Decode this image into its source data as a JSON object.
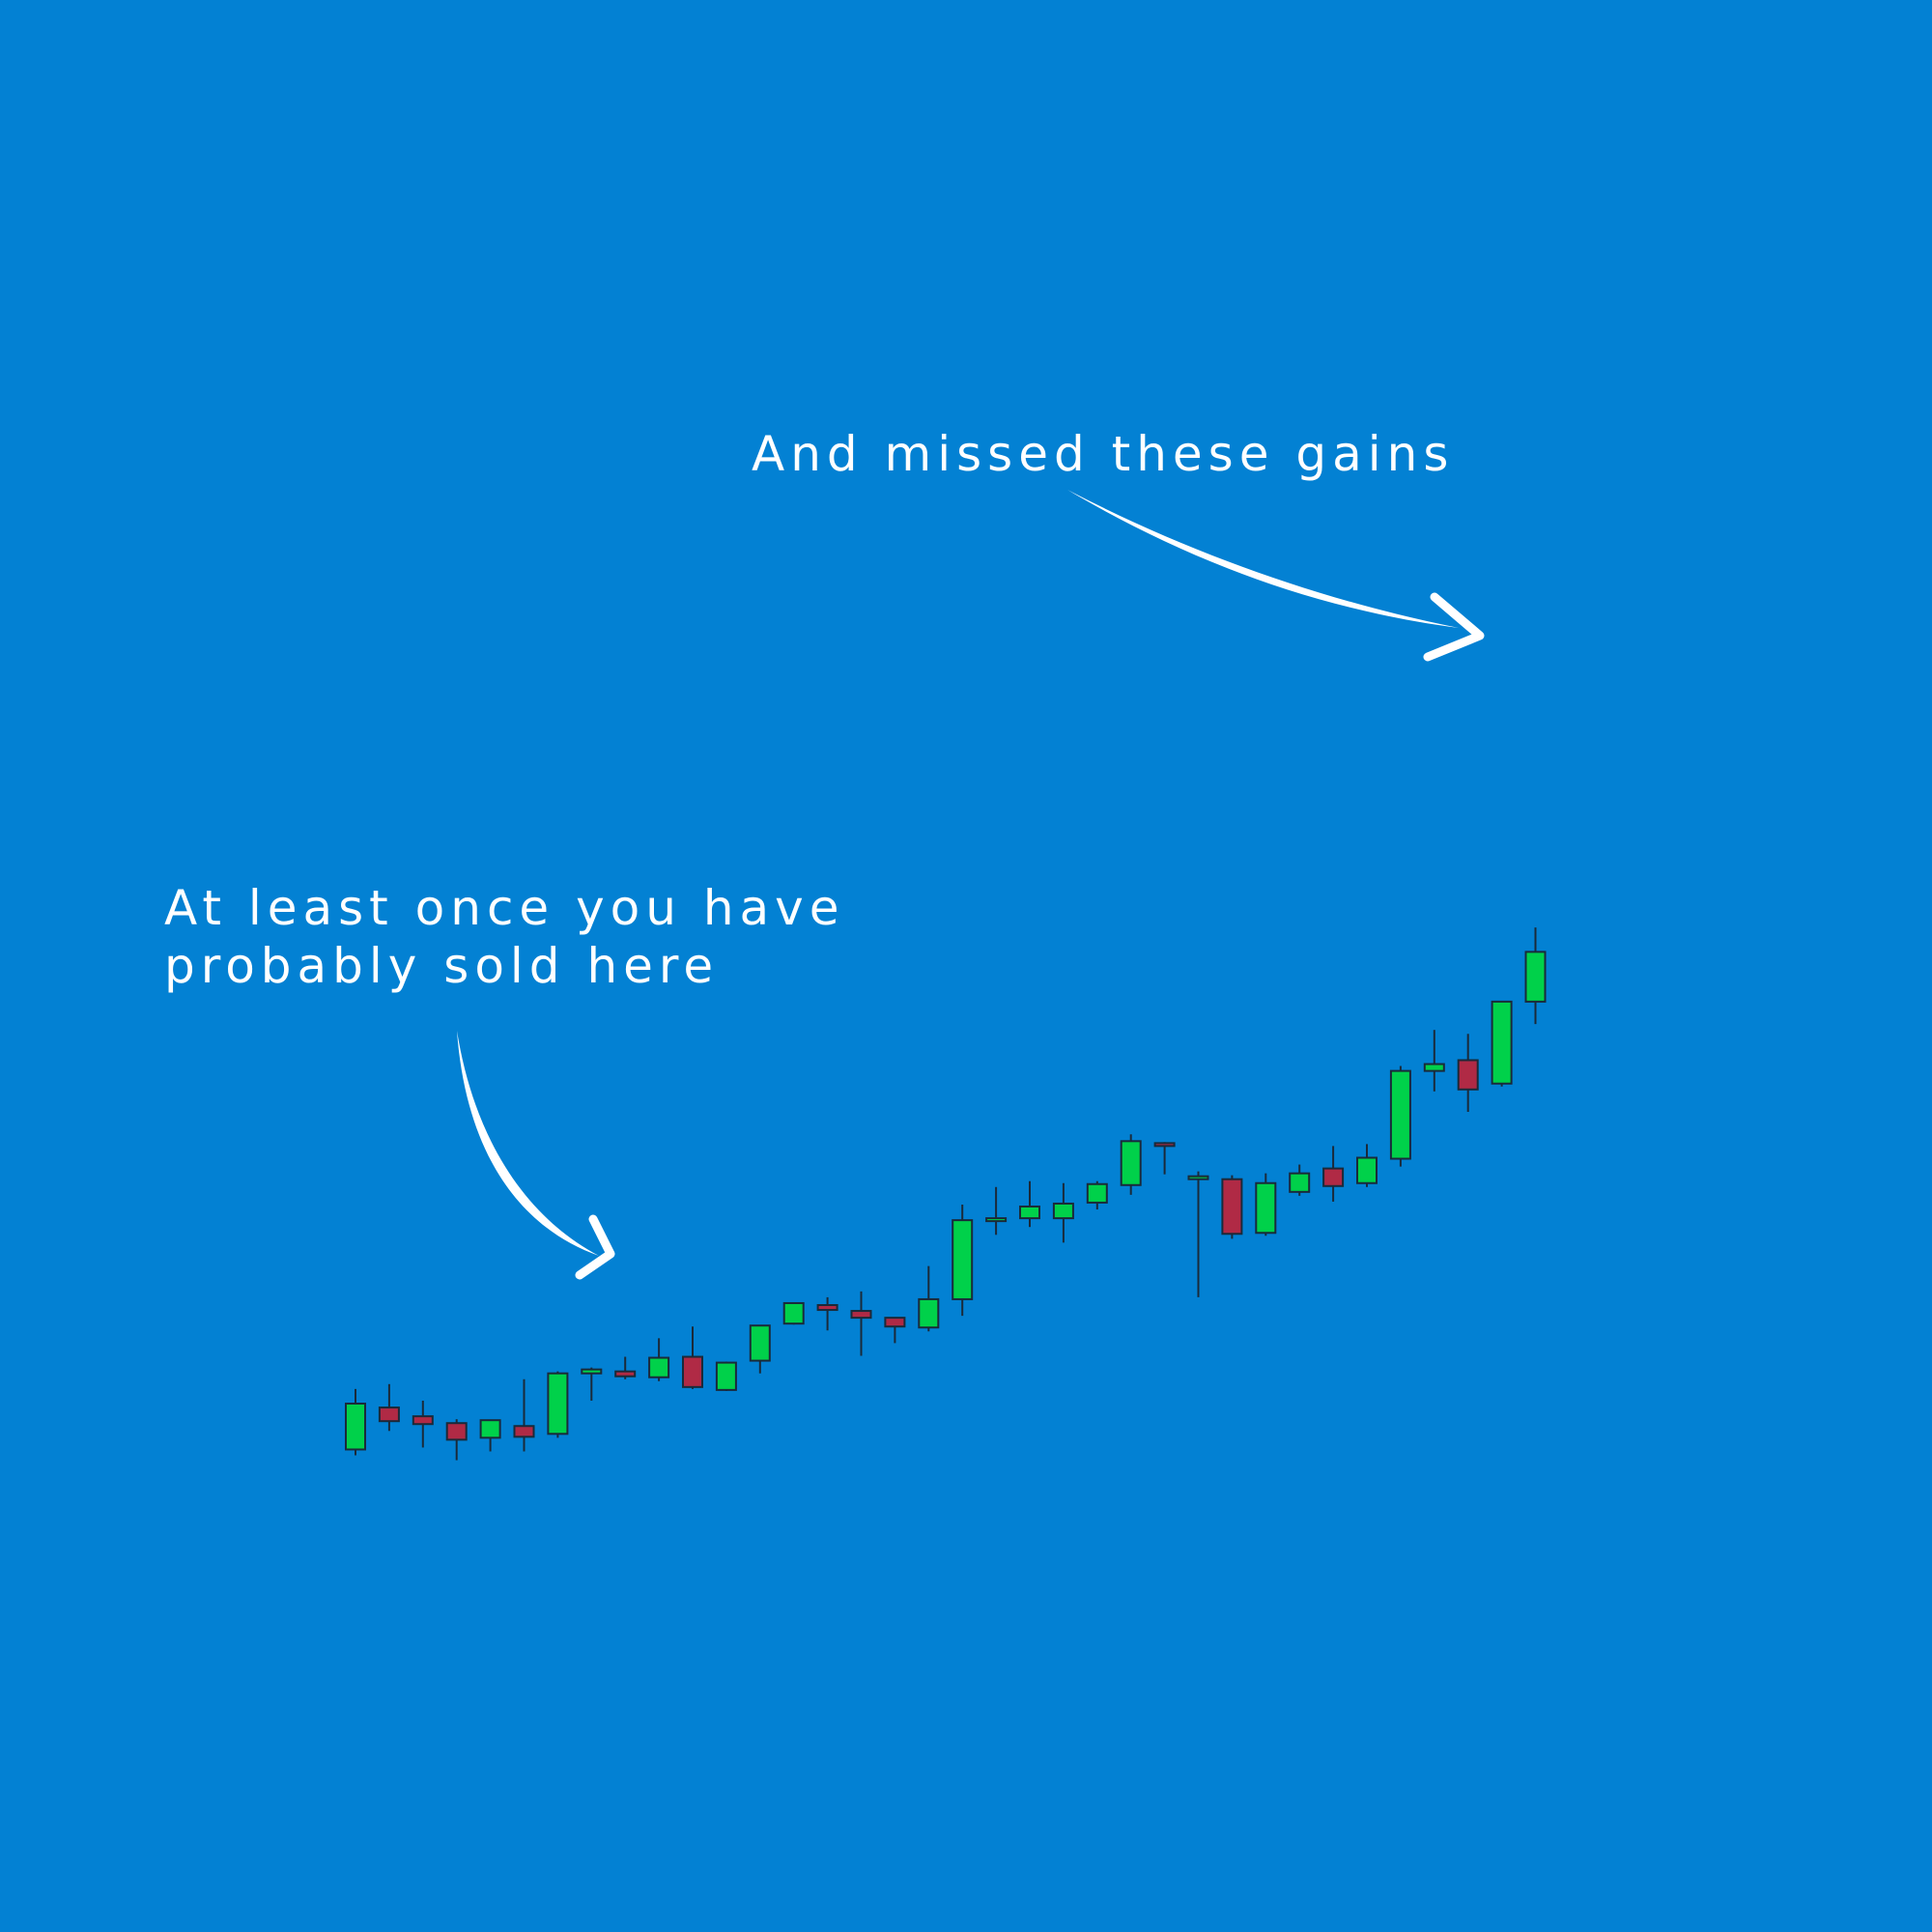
{
  "annotations": {
    "top": "And missed these gains",
    "left_line1": "At least once you have",
    "left_line2": "probably sold here"
  },
  "colors": {
    "background": "#0381d3",
    "up": "#00d14a",
    "down": "#b02a45",
    "outline": "#1a2a3a",
    "annotation": "#ffffff"
  },
  "chart_data": {
    "type": "candlestick",
    "title": "",
    "xlabel": "",
    "ylabel": "",
    "axes_visible": false,
    "grid": false,
    "ylim": [
      0,
      100
    ],
    "candles": [
      {
        "open": 5.2,
        "high": 11.4,
        "low": 4.6,
        "close": 9.9
      },
      {
        "open": 9.5,
        "high": 11.9,
        "low": 7.1,
        "close": 8.1
      },
      {
        "open": 8.6,
        "high": 10.2,
        "low": 5.4,
        "close": 7.8
      },
      {
        "open": 7.9,
        "high": 8.3,
        "low": 4.1,
        "close": 6.2
      },
      {
        "open": 6.4,
        "high": 7.7,
        "low": 5.0,
        "close": 8.2
      },
      {
        "open": 7.6,
        "high": 12.4,
        "low": 5.0,
        "close": 6.5
      },
      {
        "open": 6.8,
        "high": 13.2,
        "low": 6.4,
        "close": 13.0
      },
      {
        "open": 13.0,
        "high": 13.6,
        "low": 10.2,
        "close": 13.4
      },
      {
        "open": 13.2,
        "high": 14.7,
        "low": 12.4,
        "close": 12.7
      },
      {
        "open": 12.6,
        "high": 16.6,
        "low": 12.2,
        "close": 14.6
      },
      {
        "open": 14.7,
        "high": 17.8,
        "low": 11.4,
        "close": 11.6
      },
      {
        "open": 11.3,
        "high": 14.2,
        "low": 11.2,
        "close": 14.1
      },
      {
        "open": 14.3,
        "high": 17.9,
        "low": 13.0,
        "close": 17.9
      },
      {
        "open": 18.1,
        "high": 20.2,
        "low": 18.0,
        "close": 20.2
      },
      {
        "open": 20.0,
        "high": 20.8,
        "low": 17.4,
        "close": 19.5
      },
      {
        "open": 19.4,
        "high": 21.4,
        "low": 14.8,
        "close": 18.7
      },
      {
        "open": 18.7,
        "high": 18.7,
        "low": 16.1,
        "close": 17.8
      },
      {
        "open": 17.7,
        "high": 24.0,
        "low": 17.3,
        "close": 20.6
      },
      {
        "open": 20.6,
        "high": 30.3,
        "low": 18.9,
        "close": 28.7
      },
      {
        "open": 28.8,
        "high": 32.1,
        "low": 27.2,
        "close": 28.9
      },
      {
        "open": 28.9,
        "high": 32.7,
        "low": 28.0,
        "close": 30.1
      },
      {
        "open": 28.9,
        "high": 32.5,
        "low": 26.4,
        "close": 30.4
      },
      {
        "open": 30.5,
        "high": 32.7,
        "low": 29.8,
        "close": 32.4
      },
      {
        "open": 32.3,
        "high": 37.5,
        "low": 31.3,
        "close": 36.8
      },
      {
        "open": 36.6,
        "high": 36.7,
        "low": 33.4,
        "close": 36.4
      },
      {
        "open": 33.0,
        "high": 33.7,
        "low": 20.8,
        "close": 33.2
      },
      {
        "open": 32.9,
        "high": 33.3,
        "low": 26.8,
        "close": 27.3
      },
      {
        "open": 27.4,
        "high": 33.5,
        "low": 27.1,
        "close": 32.5
      },
      {
        "open": 31.6,
        "high": 34.4,
        "low": 31.2,
        "close": 33.5
      },
      {
        "open": 34.0,
        "high": 36.3,
        "low": 30.6,
        "close": 32.2
      },
      {
        "open": 32.5,
        "high": 36.5,
        "low": 32.1,
        "close": 35.1
      },
      {
        "open": 35.0,
        "high": 44.5,
        "low": 34.2,
        "close": 44.0
      },
      {
        "open": 44.0,
        "high": 48.2,
        "low": 41.9,
        "close": 44.7
      },
      {
        "open": 45.1,
        "high": 47.8,
        "low": 39.8,
        "close": 42.1
      },
      {
        "open": 42.7,
        "high": 50.9,
        "low": 42.4,
        "close": 51.1
      },
      {
        "open": 51.1,
        "high": 58.7,
        "low": 48.8,
        "close": 56.2
      }
    ]
  }
}
